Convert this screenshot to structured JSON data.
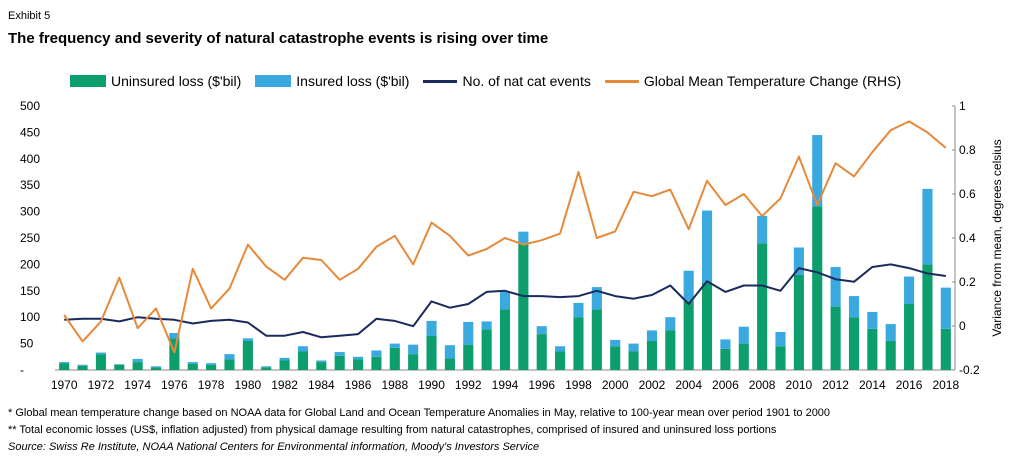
{
  "header": {
    "exhibit": "Exhibit 5",
    "title": "The frequency and severity of natural catastrophe events is rising over time"
  },
  "legend": {
    "items": [
      {
        "label": "Uninsured loss ($'bil)",
        "kind": "bar",
        "color": "#0d9e6e"
      },
      {
        "label": "Insured loss ($'bil)",
        "kind": "bar",
        "color": "#3aa9e0"
      },
      {
        "label": "No. of nat cat events",
        "kind": "line",
        "color": "#1b2a5c"
      },
      {
        "label": "Global Mean Temperature Change (RHS)",
        "kind": "line",
        "color": "#e68a3a"
      }
    ]
  },
  "notes": {
    "note1": "* Global mean temperature change based on NOAA data for Global Land and Ocean Temperature Anomalies in May, relative to 100-year mean over period 1901 to 2000",
    "note2": "** Total economic losses (US$, inflation adjusted) from physical damage resulting from natural catastrophes, comprised of insured and uninsured loss portions",
    "source": "Source: Swiss Re Institute, NOAA National Centers for Environmental information, Moody's Investors Service"
  },
  "chart_data": {
    "type": "bar",
    "stacked": true,
    "years": [
      1970,
      1971,
      1972,
      1973,
      1974,
      1975,
      1976,
      1977,
      1978,
      1979,
      1980,
      1981,
      1982,
      1983,
      1984,
      1985,
      1986,
      1987,
      1988,
      1989,
      1990,
      1991,
      1992,
      1993,
      1994,
      1995,
      1996,
      1997,
      1998,
      1999,
      2000,
      2001,
      2002,
      2003,
      2004,
      2005,
      2006,
      2007,
      2008,
      2009,
      2010,
      2011,
      2012,
      2013,
      2014,
      2015,
      2016,
      2017,
      2018
    ],
    "x_tick_labels": [
      "1970",
      "1972",
      "1974",
      "1976",
      "1978",
      "1980",
      "1982",
      "1984",
      "1986",
      "1988",
      "1990",
      "1992",
      "1994",
      "1996",
      "1998",
      "2000",
      "2002",
      "2004",
      "2006",
      "2008",
      "2010",
      "2012",
      "2014",
      "2016",
      "2018"
    ],
    "series": [
      {
        "name": "Uninsured loss ($'bil)",
        "type": "bar",
        "axis": "left",
        "color": "#0d9e6e",
        "values": [
          13,
          8,
          30,
          10,
          15,
          5,
          60,
          12,
          10,
          20,
          55,
          5,
          18,
          35,
          15,
          27,
          20,
          25,
          42,
          30,
          65,
          22,
          48,
          77,
          115,
          240,
          68,
          35,
          100,
          115,
          45,
          35,
          55,
          75,
          130,
          165,
          40,
          50,
          240,
          45,
          180,
          310,
          120,
          100,
          78,
          55,
          125,
          200,
          78
        ]
      },
      {
        "name": "Insured loss ($'bil)",
        "type": "bar",
        "axis": "left",
        "color": "#3aa9e0",
        "values": [
          2,
          2,
          3,
          1,
          6,
          2,
          10,
          3,
          3,
          10,
          5,
          2,
          5,
          10,
          3,
          7,
          5,
          12,
          8,
          18,
          28,
          25,
          43,
          15,
          33,
          22,
          15,
          10,
          27,
          42,
          12,
          15,
          20,
          25,
          58,
          137,
          18,
          32,
          52,
          27,
          52,
          135,
          75,
          40,
          32,
          32,
          52,
          143,
          78
        ]
      },
      {
        "name": "No. of nat cat events",
        "type": "line",
        "axis": "left",
        "color": "#1b2a5c",
        "values": [
          95,
          97,
          97,
          92,
          100,
          97,
          95,
          88,
          93,
          95,
          90,
          65,
          65,
          72,
          62,
          65,
          68,
          97,
          93,
          83,
          130,
          118,
          125,
          148,
          150,
          140,
          140,
          138,
          140,
          150,
          140,
          135,
          142,
          160,
          125,
          168,
          148,
          160,
          160,
          150,
          193,
          185,
          172,
          167,
          195,
          200,
          193,
          183,
          178
        ]
      },
      {
        "name": "Global Mean Temperature Change (RHS)",
        "type": "line",
        "axis": "right",
        "color": "#e68a3a",
        "values": [
          0.05,
          -0.07,
          0.02,
          0.22,
          -0.01,
          0.08,
          -0.12,
          0.26,
          0.08,
          0.17,
          0.37,
          0.27,
          0.21,
          0.31,
          0.3,
          0.21,
          0.26,
          0.36,
          0.41,
          0.28,
          0.47,
          0.41,
          0.32,
          0.35,
          0.4,
          0.37,
          0.39,
          0.42,
          0.7,
          0.4,
          0.43,
          0.61,
          0.59,
          0.62,
          0.44,
          0.66,
          0.55,
          0.6,
          0.5,
          0.58,
          0.77,
          0.55,
          0.74,
          0.68,
          0.79,
          0.89,
          0.93,
          0.88,
          0.81
        ]
      }
    ],
    "left_axis": {
      "ylim": [
        0,
        500
      ],
      "ticks": [
        0,
        50,
        100,
        150,
        200,
        250,
        300,
        350,
        400,
        450,
        500
      ],
      "tick_labels": [
        "-",
        "50",
        "100",
        "150",
        "200",
        "250",
        "300",
        "350",
        "400",
        "450",
        "500"
      ]
    },
    "right_axis": {
      "ylim": [
        -0.2,
        1.0
      ],
      "ticks": [
        -0.2,
        0,
        0.2,
        0.4,
        0.6,
        0.8,
        1.0
      ],
      "tick_labels": [
        "-0.2",
        "0",
        "0.2",
        "0.4",
        "0.6",
        "0.8",
        "1"
      ],
      "label": "Variance from mean, degrees celsius"
    },
    "grid": false,
    "legend_position": "top"
  }
}
